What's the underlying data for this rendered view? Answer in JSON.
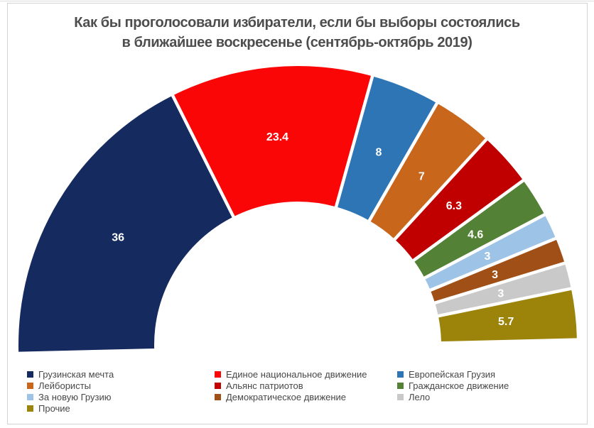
{
  "title": {
    "line1": "Как бы проголосовали избиратели, если бы выборы состоялись",
    "line2": "в ближайшее воскресенье (сентябрь-октябрь 2019)"
  },
  "chart_data": {
    "type": "pie",
    "variant": "half_donut",
    "title": "Как бы проголосовали избиратели, если бы выборы состоялись в ближайшее воскресенье (сентябрь-октябрь 2019)",
    "unit": "percent",
    "total": 100,
    "categories": [
      "Грузинская мечта",
      "Единое национальное движение",
      "Европейская Грузия",
      "Лейбористы",
      "Альянс патриотов",
      "Гражданское движение",
      "За новую Грузию",
      "Демократическое движение",
      "Лело",
      "Прочие"
    ],
    "values": [
      36,
      23.4,
      8,
      7,
      6.3,
      4.6,
      3,
      3,
      3,
      5.7
    ],
    "labels": [
      "36",
      "23.4",
      "8",
      "7",
      "6.3",
      "4.6",
      "3",
      "3",
      "3",
      "5.7"
    ],
    "colors": [
      "#152a5f",
      "#fb0606",
      "#2e75b6",
      "#c8661b",
      "#c00000",
      "#538135",
      "#9dc3e6",
      "#a04f16",
      "#c9c9c9",
      "#9c840a"
    ],
    "data_label_color": "#ffffff",
    "legend": {
      "position": "bottom",
      "columns": 3
    }
  },
  "frame": {
    "border_color": "#d3d3d3",
    "background": "#ffffff"
  }
}
